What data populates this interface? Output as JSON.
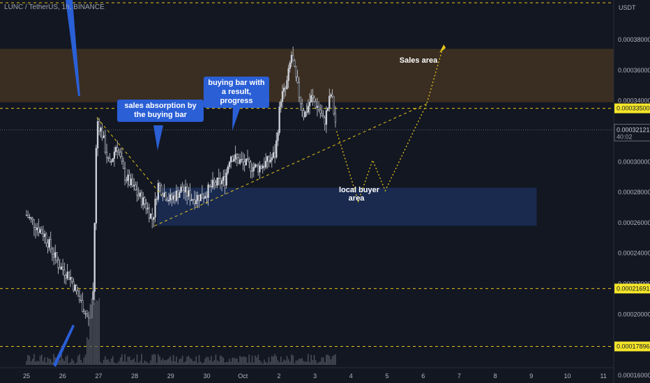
{
  "symbol": "LUNC / TetherUS, 1h, BINANCE",
  "currency": "USDT",
  "price_now": "0.00032121",
  "countdown": "40:02",
  "levels": [
    {
      "value": 0.000335,
      "label": "0.00033500"
    },
    {
      "value": 0.00021691,
      "label": "0.00021691"
    },
    {
      "value": 0.00017896,
      "label": "0.00017896"
    }
  ],
  "annotations": {
    "absorption": "sales absorption by the buying bar",
    "buying_bar": "buying bar with a result, progress",
    "sales_area": "Sales area",
    "buyer_area": "local buyer area"
  },
  "chart_data": {
    "type": "candlestick",
    "title": "LUNC / TetherUS, 1h, BINANCE",
    "ylabel": "USDT",
    "ylim": [
      0.000155,
      0.000406
    ],
    "y_ticks": [
      "0.00016000",
      "0.00018000",
      "0.00020000",
      "0.00022000",
      "0.00024000",
      "0.00026000",
      "0.00028000",
      "0.00030000",
      "0.00032000",
      "0.00034000",
      "0.00036000",
      "0.00038000"
    ],
    "x_ticks": [
      "25",
      "26",
      "27",
      "28",
      "29",
      "30",
      "Oct",
      "2",
      "3",
      "4",
      "5",
      "6",
      "7",
      "8",
      "9",
      "10",
      "11"
    ],
    "price_path": [
      [
        0,
        0.000265
      ],
      [
        0.5,
        0.000252
      ],
      [
        0.9,
        0.000232
      ],
      [
        1.2,
        0.000225
      ],
      [
        1.5,
        0.000208
      ],
      [
        1.75,
        0.000195
      ],
      [
        1.85,
        0.000215
      ],
      [
        1.95,
        0.000328
      ],
      [
        2.1,
        0.000318
      ],
      [
        2.3,
        0.000296
      ],
      [
        2.5,
        0.000312
      ],
      [
        2.7,
        0.000292
      ],
      [
        2.9,
        0.000285
      ],
      [
        3.1,
        0.000278
      ],
      [
        3.3,
        0.000272
      ],
      [
        3.5,
        0.000262
      ],
      [
        3.65,
        0.000285
      ],
      [
        3.8,
        0.00028
      ],
      [
        4.0,
        0.000275
      ],
      [
        4.3,
        0.000282
      ],
      [
        4.6,
        0.000276
      ],
      [
        4.9,
        0.000278
      ],
      [
        5.2,
        0.000285
      ],
      [
        5.5,
        0.000288
      ],
      [
        5.65,
        0.000305
      ],
      [
        5.8,
        0.000302
      ],
      [
        6.1,
        0.000298
      ],
      [
        6.4,
        0.000296
      ],
      [
        6.7,
        0.0003
      ],
      [
        6.9,
        0.000305
      ],
      [
        7.05,
        0.000342
      ],
      [
        7.2,
        0.000348
      ],
      [
        7.35,
        0.00037
      ],
      [
        7.5,
        0.00035
      ],
      [
        7.7,
        0.00033
      ],
      [
        7.9,
        0.000342
      ],
      [
        8.1,
        0.000335
      ],
      [
        8.25,
        0.000325
      ],
      [
        8.45,
        0.000345
      ],
      [
        8.6,
        0.000321
      ]
    ],
    "sales_area": [
      0.000339,
      0.000374
    ],
    "buyer_area": [
      0.000258,
      0.000283
    ],
    "projection": [
      [
        8.6,
        0.00032
      ],
      [
        9.2,
        0.000274
      ],
      [
        9.6,
        0.000301
      ],
      [
        9.95,
        0.000281
      ],
      [
        11.1,
        0.000338
      ],
      [
        11.55,
        0.000375
      ]
    ]
  }
}
